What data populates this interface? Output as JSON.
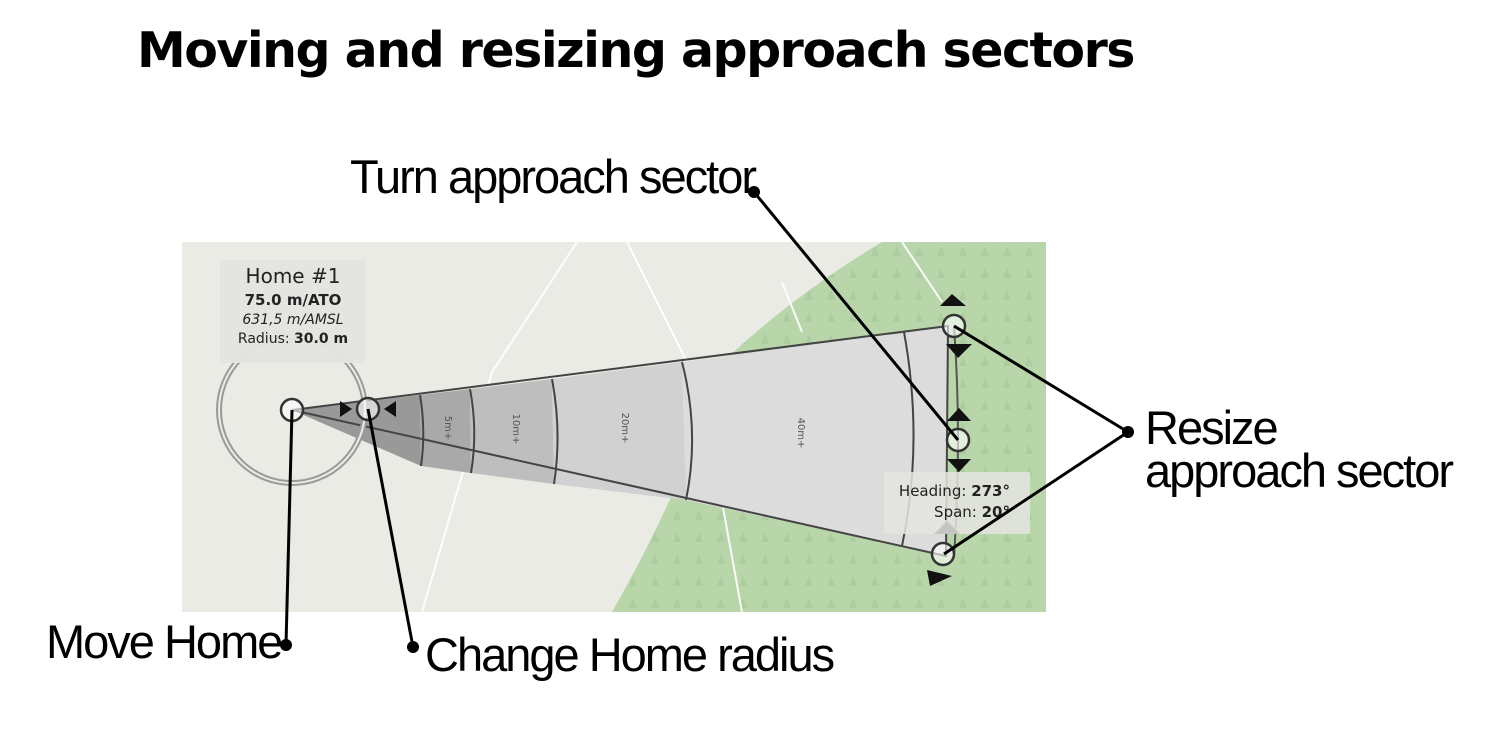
{
  "title": "Moving and resizing approach sectors",
  "callouts": {
    "turn": "Turn approach sector",
    "move_home": "Move Home",
    "change_radius": "Change Home radius",
    "resize_line1": "Resize",
    "resize_line2": "approach sector"
  },
  "home_info": {
    "title": "Home #1",
    "ato": "75.0 m/ATO",
    "amsl": "631,5 m/AMSL",
    "radius_label": "Radius:",
    "radius_value": "30.0 m"
  },
  "sector_info": {
    "heading_label": "Heading:",
    "heading_value": "273°",
    "span_label": "Span:",
    "span_value": "20°"
  },
  "sector_bands": [
    "5m+",
    "10m+",
    "20m+",
    "40m+"
  ],
  "colors": {
    "map_background": "#e9ebe4",
    "forest": "#b9d6ab",
    "sector_band_1": "#999999",
    "sector_band_2": "#a9a9a9",
    "sector_band_3": "#bebebe",
    "sector_band_4": "#d1d1d1",
    "sector_band_5": "#dcdcdc"
  }
}
